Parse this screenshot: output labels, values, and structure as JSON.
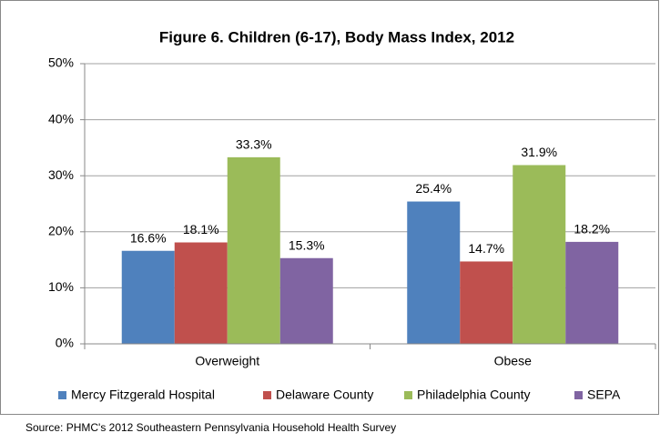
{
  "chart_data": {
    "type": "bar",
    "title": "Figure 6. Children (6-17), Body Mass Index, 2012",
    "categories": [
      "Overweight",
      "Obese"
    ],
    "series": [
      {
        "name": "Mercy Fitzgerald Hospital",
        "color": "#4f81bd",
        "values": [
          16.6,
          25.4
        ],
        "value_labels": [
          "16.6%",
          "25.4%"
        ]
      },
      {
        "name": "Delaware County",
        "color": "#c0504d",
        "values": [
          18.1,
          14.7
        ],
        "value_labels": [
          "18.1%",
          "14.7%"
        ]
      },
      {
        "name": "Philadelphia County",
        "color": "#9bbb59",
        "values": [
          33.3,
          31.9
        ],
        "value_labels": [
          "33.3%",
          "31.9%"
        ]
      },
      {
        "name": "SEPA",
        "color": "#8064a2",
        "values": [
          15.3,
          18.2
        ],
        "value_labels": [
          "15.3%",
          "18.2%"
        ]
      }
    ],
    "ylim": [
      0,
      50
    ],
    "yticks": [
      {
        "value": 0,
        "label": "0%"
      },
      {
        "value": 10,
        "label": "10%"
      },
      {
        "value": 20,
        "label": "20%"
      },
      {
        "value": 30,
        "label": "30%"
      },
      {
        "value": 40,
        "label": "40%"
      },
      {
        "value": 50,
        "label": "50%"
      }
    ],
    "grid": true,
    "legend": "bottom",
    "source": "Source: PHMC's  2012 Southeastern Pennsylvania Household Health Survey"
  }
}
